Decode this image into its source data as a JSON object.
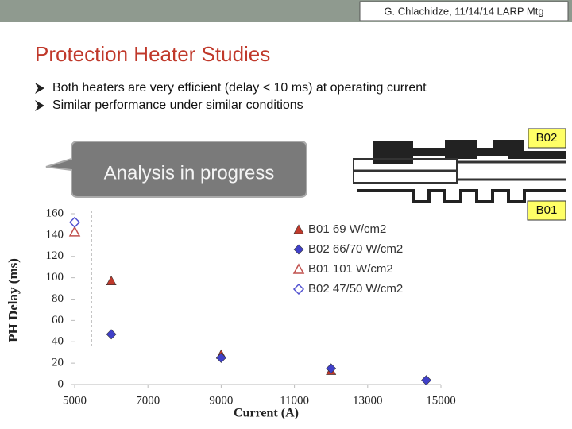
{
  "header": {
    "text": "G. Chlachidze, 11/14/14 LARP Mtg"
  },
  "title": "Protection Heater Studies",
  "bullets": [
    "Both heaters are very efficient (delay < 10 ms) at operating current",
    "Similar performance under similar conditions"
  ],
  "callout": "Analysis in progress",
  "diagram": {
    "labels": [
      "B02",
      "B01"
    ]
  },
  "chart_data": {
    "type": "scatter",
    "x_label": "Current (A)",
    "y_label": "PH Delay (ms)",
    "xlim": [
      5000,
      15000
    ],
    "xticks": [
      5000,
      7000,
      9000,
      11000,
      13000,
      15000
    ],
    "ylim": [
      0,
      160
    ],
    "yticks": [
      0,
      20,
      40,
      60,
      80,
      100,
      120,
      140,
      160
    ],
    "legend": "upper right",
    "series": [
      {
        "name": "B01 69 W/cm2",
        "color": "#c0392b",
        "marker": "triangle",
        "filled": true,
        "x": [
          6000,
          9000,
          12000
        ],
        "values": [
          97,
          28,
          13
        ]
      },
      {
        "name": "B02 66/70 W/cm2",
        "color": "#4040c8",
        "marker": "diamond",
        "filled": true,
        "x": [
          6000,
          9000,
          12000,
          14600
        ],
        "values": [
          47,
          25,
          15,
          4
        ]
      },
      {
        "name": "B01 101 W/cm2",
        "color": "#c0504d",
        "marker": "triangle",
        "filled": false,
        "x": [
          5000
        ],
        "values": [
          143
        ]
      },
      {
        "name": "B02 47/50 W/cm2",
        "color": "#5050d0",
        "marker": "diamond",
        "filled": false,
        "x": [
          5000
        ],
        "values": [
          152
        ]
      }
    ]
  }
}
